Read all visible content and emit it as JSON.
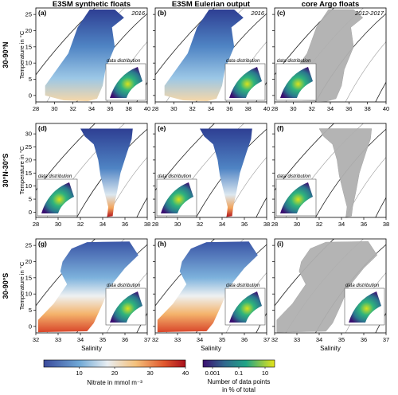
{
  "chart_data": {
    "type": "heatmap",
    "column_titles": [
      "E3SM synthetic floats",
      "E3SM Eulerian output",
      "core Argo floats"
    ],
    "column_years": [
      "2016",
      "2016",
      "2012-2017"
    ],
    "row_labels": [
      "30-90°N",
      "30°N-30°S",
      "30-90°S"
    ],
    "panel_letters": [
      "(a)",
      "(b)",
      "(c)",
      "(d)",
      "(e)",
      "(f)",
      "(g)",
      "(h)",
      "(i)"
    ],
    "ylabel": "Temperature in °C",
    "xlabel": "Salinity",
    "inset_label": "data distribution",
    "rows": [
      {
        "xlim": [
          28,
          40
        ],
        "xticks": [
          28,
          30,
          32,
          34,
          36,
          38,
          40
        ],
        "ylim": [
          -2,
          27
        ],
        "yticks": [
          0,
          5,
          10,
          15,
          20,
          25
        ]
      },
      {
        "xlim": [
          28,
          38
        ],
        "xticks": [
          28,
          30,
          32,
          34,
          36,
          38
        ],
        "ylim": [
          -2,
          34
        ],
        "yticks": [
          0,
          5,
          10,
          15,
          20,
          25,
          30
        ]
      },
      {
        "xlim": [
          32,
          37
        ],
        "xticks": [
          32,
          33,
          34,
          35,
          36,
          37
        ],
        "ylim": [
          -2,
          27
        ],
        "yticks": [
          0,
          5,
          10,
          15,
          20,
          25
        ]
      }
    ],
    "colorbar_nitrate": {
      "label": "Nitrate in mmol m⁻³",
      "ticks": [
        "10",
        "20",
        "30",
        "40"
      ],
      "range": [
        0,
        40
      ]
    },
    "colorbar_density": {
      "label_line1": "Number of data points",
      "label_line2": "in % of total",
      "ticks": [
        "0.001",
        "0.1",
        "10"
      ]
    }
  }
}
